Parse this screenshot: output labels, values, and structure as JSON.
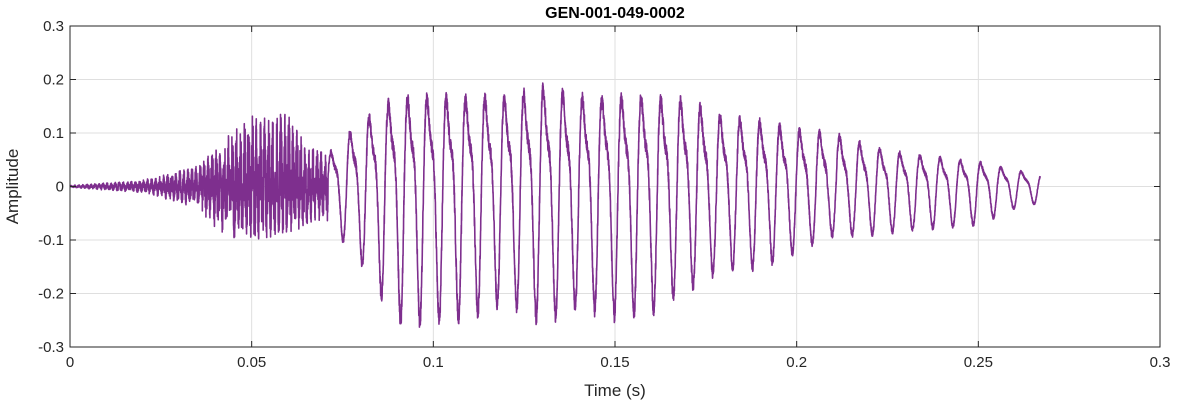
{
  "chart_data": {
    "type": "line",
    "title": "GEN-001-049-0002",
    "xlabel": "Time (s)",
    "ylabel": "Amplitude",
    "xlim": [
      0,
      0.3
    ],
    "ylim": [
      -0.3,
      0.3
    ],
    "grid": true,
    "xticks": [
      0,
      0.05,
      0.1,
      0.15,
      0.2,
      0.25,
      0.3
    ],
    "xtick_labels": [
      "0",
      "0.05",
      "0.1",
      "0.15",
      "0.2",
      "0.25",
      "0.3"
    ],
    "yticks": [
      0.3,
      0.2,
      0.1,
      0,
      -0.1,
      -0.2,
      -0.3
    ],
    "ytick_labels": [
      "0.3",
      "0.2",
      "0.1",
      "0",
      "-0.1",
      "-0.2",
      "-0.3"
    ],
    "series": [
      {
        "color": "#7e2f8e",
        "x_start": 0,
        "x_end": 0.267,
        "envelope": {
          "x": [
            0,
            0.02,
            0.035,
            0.04,
            0.045,
            0.05,
            0.055,
            0.06,
            0.065,
            0.07,
            0.08,
            0.09,
            0.1,
            0.11,
            0.12,
            0.13,
            0.14,
            0.15,
            0.16,
            0.17,
            0.18,
            0.19,
            0.2,
            0.21,
            0.22,
            0.23,
            0.24,
            0.25,
            0.26,
            0.267
          ],
          "max": [
            0.002,
            0.012,
            0.04,
            0.07,
            0.11,
            0.14,
            0.13,
            0.15,
            0.08,
            0.07,
            0.16,
            0.22,
            0.22,
            0.22,
            0.22,
            0.245,
            0.22,
            0.22,
            0.22,
            0.21,
            0.17,
            0.16,
            0.14,
            0.13,
            0.1,
            0.08,
            0.07,
            0.06,
            0.04,
            0.03
          ],
          "min": [
            -0.002,
            -0.012,
            -0.04,
            -0.08,
            -0.1,
            -0.11,
            -0.1,
            -0.09,
            -0.08,
            -0.06,
            -0.14,
            -0.25,
            -0.25,
            -0.24,
            -0.21,
            -0.25,
            -0.22,
            -0.24,
            -0.23,
            -0.19,
            -0.15,
            -0.15,
            -0.12,
            -0.09,
            -0.09,
            -0.08,
            -0.075,
            -0.07,
            -0.04,
            -0.03
          ]
        }
      }
    ]
  }
}
